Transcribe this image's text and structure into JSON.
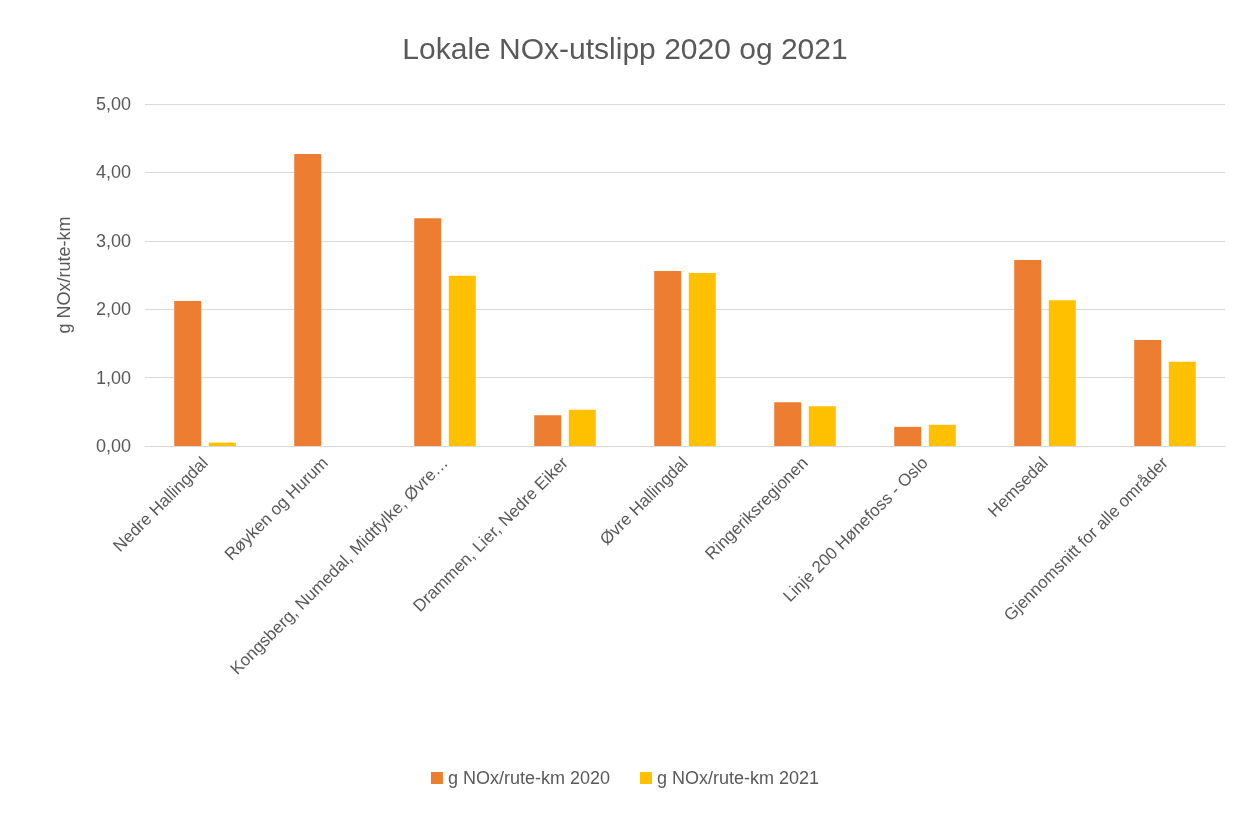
{
  "chart_data": {
    "type": "bar",
    "title": "Lokale NOx-utslipp 2020 og 2021",
    "ylabel": "g NOx/rute-km",
    "categories": [
      "Nedre Hallingdal",
      "Røyken og Hurum",
      "Kongsberg, Numedal, Midtfylke, Øvre…",
      "Drammen, Lier, Nedre Eiker",
      "Øvre Hallingdal",
      "Ringeriksregionen",
      "Linje 200 Hønefoss - Oslo",
      "Hemsedal",
      "Gjennomsnitt for alle områder"
    ],
    "series": [
      {
        "name": "g NOx/rute-km 2020",
        "color": "#ed7d31",
        "values": [
          2.12,
          4.27,
          3.33,
          0.45,
          2.56,
          0.64,
          0.28,
          2.72,
          1.55
        ]
      },
      {
        "name": "g NOx/rute-km 2021",
        "color": "#ffc000",
        "values": [
          0.05,
          null,
          2.49,
          0.53,
          2.53,
          0.58,
          0.31,
          2.13,
          1.23
        ]
      }
    ],
    "ylim": [
      0,
      5
    ],
    "yticks": [
      {
        "value": 0,
        "label": "0,00"
      },
      {
        "value": 1,
        "label": "1,00"
      },
      {
        "value": 2,
        "label": "2,00"
      },
      {
        "value": 3,
        "label": "3,00"
      },
      {
        "value": 4,
        "label": "4,00"
      },
      {
        "value": 5,
        "label": "5,00"
      }
    ],
    "grid": "y",
    "legend": "bottom"
  }
}
